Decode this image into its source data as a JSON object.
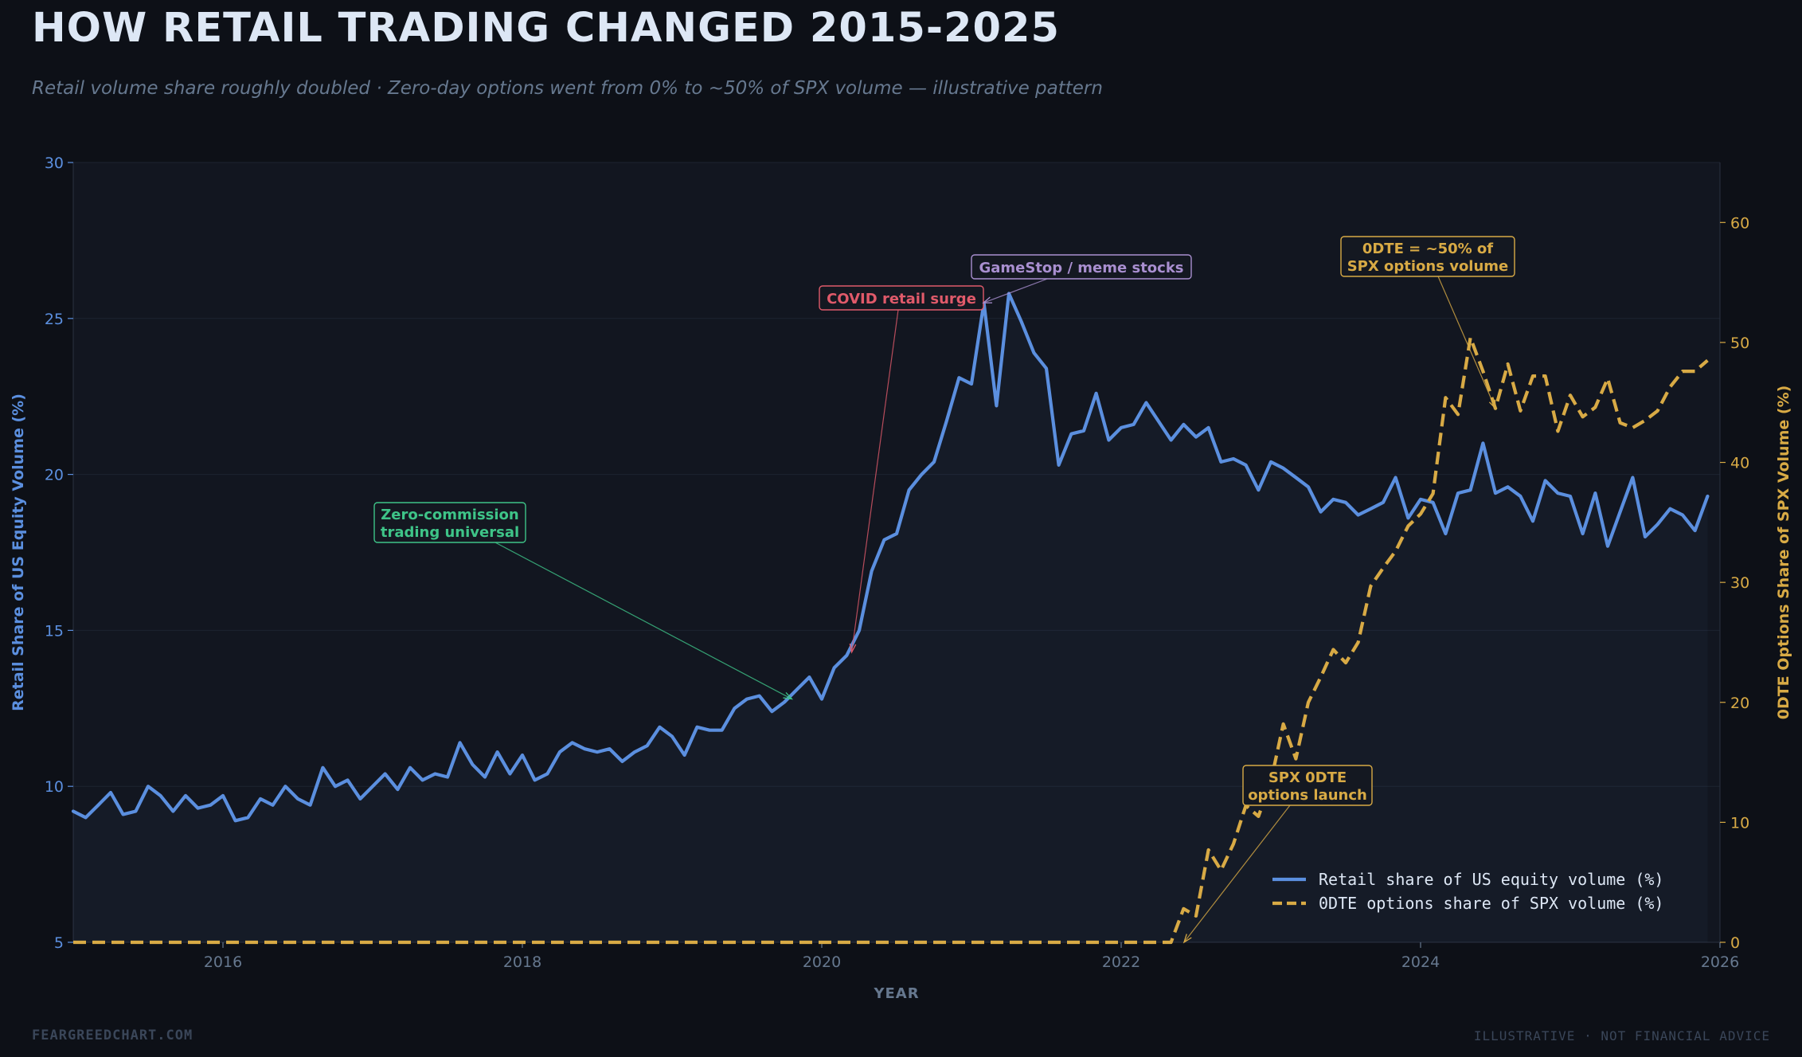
{
  "header": {
    "title": "HOW RETAIL TRADING CHANGED 2015-2025",
    "subtitle": "Retail volume share roughly doubled · Zero-day options went from 0% to ~50% of SPX volume — illustrative pattern"
  },
  "footer": {
    "left": "FEARGREEDCHART.COM",
    "right": "ILLUSTRATIVE · NOT FINANCIAL ADVICE"
  },
  "colors": {
    "background": "#0d1017",
    "plot_background": "#121620",
    "retail": "#5b8fdf",
    "odte": "#d8aa45",
    "green_annotation": "#3ec488",
    "red_annotation": "#e05a6a",
    "purple_annotation": "#a98fd0",
    "muted_text": "#66788f"
  },
  "chart_data": {
    "type": "line",
    "xlabel": "YEAR",
    "ylabel_left": "Retail Share of US Equity Volume (%)",
    "ylabel_right": "0DTE Options Share of SPX Volume (%)",
    "xlim": [
      2015,
      2026
    ],
    "ylim_left": [
      5,
      30
    ],
    "ylim_right": [
      0,
      65
    ],
    "x_ticks": [
      2016,
      2018,
      2020,
      2022,
      2024,
      2026
    ],
    "y_ticks_left": [
      5,
      10,
      15,
      20,
      25,
      30
    ],
    "y_ticks_right": [
      0,
      10,
      20,
      30,
      40,
      50,
      60
    ],
    "grid": true,
    "legend_position": "bottom-right",
    "series": [
      {
        "name": "Retail share of US equity volume (%)",
        "axis": "left",
        "style": "solid",
        "x": [
          2015.0,
          2015.083,
          2015.167,
          2015.25,
          2015.333,
          2015.417,
          2015.5,
          2015.583,
          2015.667,
          2015.75,
          2015.833,
          2015.917,
          2016.0,
          2016.083,
          2016.167,
          2016.25,
          2016.333,
          2016.417,
          2016.5,
          2016.583,
          2016.667,
          2016.75,
          2016.833,
          2016.917,
          2017.0,
          2017.083,
          2017.167,
          2017.25,
          2017.333,
          2017.417,
          2017.5,
          2017.583,
          2017.667,
          2017.75,
          2017.833,
          2017.917,
          2018.0,
          2018.083,
          2018.167,
          2018.25,
          2018.333,
          2018.417,
          2018.5,
          2018.583,
          2018.667,
          2018.75,
          2018.833,
          2018.917,
          2019.0,
          2019.083,
          2019.167,
          2019.25,
          2019.333,
          2019.417,
          2019.5,
          2019.583,
          2019.667,
          2019.75,
          2019.833,
          2019.917,
          2020.0,
          2020.083,
          2020.167,
          2020.25,
          2020.333,
          2020.417,
          2020.5,
          2020.583,
          2020.667,
          2020.75,
          2020.833,
          2020.917,
          2021.0,
          2021.083,
          2021.167,
          2021.25,
          2021.333,
          2021.417,
          2021.5,
          2021.583,
          2021.667,
          2021.75,
          2021.833,
          2021.917,
          2022.0,
          2022.083,
          2022.167,
          2022.25,
          2022.333,
          2022.417,
          2022.5,
          2022.583,
          2022.667,
          2022.75,
          2022.833,
          2022.917,
          2023.0,
          2023.083,
          2023.167,
          2023.25,
          2023.333,
          2023.417,
          2023.5,
          2023.583,
          2023.667,
          2023.75,
          2023.833,
          2023.917,
          2024.0,
          2024.083,
          2024.167,
          2024.25,
          2024.333,
          2024.417,
          2024.5,
          2024.583,
          2024.667,
          2024.75,
          2024.833,
          2024.917,
          2025.0,
          2025.083,
          2025.167,
          2025.25,
          2025.333,
          2025.417,
          2025.5,
          2025.583,
          2025.667,
          2025.75,
          2025.833,
          2025.917
        ],
        "values": [
          9.2,
          9.0,
          9.4,
          9.8,
          9.1,
          9.2,
          10.0,
          9.7,
          9.2,
          9.7,
          9.3,
          9.4,
          9.7,
          8.9,
          9.0,
          9.6,
          9.4,
          10.0,
          9.6,
          9.4,
          10.6,
          10.0,
          10.2,
          9.6,
          10.0,
          10.4,
          9.9,
          10.6,
          10.2,
          10.4,
          10.3,
          11.4,
          10.7,
          10.3,
          11.1,
          10.4,
          11.0,
          10.2,
          10.4,
          11.1,
          11.4,
          11.2,
          11.1,
          11.2,
          10.8,
          11.1,
          11.3,
          11.9,
          11.6,
          11.0,
          11.9,
          11.8,
          11.8,
          12.5,
          12.8,
          12.9,
          12.4,
          12.7,
          13.1,
          13.5,
          12.8,
          13.8,
          14.2,
          15.0,
          16.9,
          17.9,
          18.1,
          19.5,
          20.0,
          20.4,
          21.7,
          23.1,
          22.9,
          25.5,
          22.2,
          25.8,
          24.9,
          23.9,
          23.4,
          20.3,
          21.3,
          21.4,
          22.6,
          21.1,
          21.5,
          21.6,
          22.3,
          21.7,
          21.1,
          21.6,
          21.2,
          21.5,
          20.4,
          20.5,
          20.3,
          19.5,
          20.4,
          20.2,
          19.9,
          19.6,
          18.8,
          19.2,
          19.1,
          18.7,
          18.9,
          19.1,
          19.9,
          18.6,
          19.2,
          19.1,
          18.1,
          19.4,
          19.5,
          21.0,
          19.4,
          19.6,
          19.3,
          18.5,
          19.8,
          19.4,
          19.3,
          18.1,
          19.4,
          17.7,
          18.8,
          19.9,
          18.0,
          18.4,
          18.9,
          18.7,
          18.2,
          19.3
        ]
      },
      {
        "name": "0DTE options share of SPX volume (%)",
        "axis": "right",
        "style": "dashed",
        "x": [
          2015.0,
          2016.0,
          2017.0,
          2018.0,
          2019.0,
          2020.0,
          2021.0,
          2022.0,
          2022.333,
          2022.417,
          2022.5,
          2022.583,
          2022.667,
          2022.75,
          2022.833,
          2022.917,
          2023.0,
          2023.083,
          2023.167,
          2023.25,
          2023.333,
          2023.417,
          2023.5,
          2023.583,
          2023.667,
          2023.75,
          2023.833,
          2023.917,
          2024.0,
          2024.083,
          2024.167,
          2024.25,
          2024.333,
          2024.417,
          2024.5,
          2024.583,
          2024.667,
          2024.75,
          2024.833,
          2024.917,
          2025.0,
          2025.083,
          2025.167,
          2025.25,
          2025.333,
          2025.417,
          2025.5,
          2025.583,
          2025.667,
          2025.75,
          2025.833,
          2025.917
        ],
        "values": [
          0,
          0,
          0,
          0,
          0,
          0,
          0,
          0,
          0,
          2.8,
          2.2,
          7.7,
          6.0,
          8.2,
          11.4,
          10.5,
          13.4,
          18.2,
          15.3,
          20.0,
          22.1,
          24.4,
          23.3,
          25.0,
          29.7,
          31.2,
          32.6,
          34.7,
          35.7,
          37.4,
          45.4,
          44.0,
          50.4,
          47.6,
          44.5,
          48.2,
          44.3,
          47.2,
          47.2,
          42.6,
          45.6,
          43.8,
          44.6,
          47.0,
          43.3,
          42.9,
          43.5,
          44.3,
          46.3,
          47.6,
          47.6,
          48.5
        ]
      }
    ],
    "annotations": [
      {
        "text": "Zero-commission\ntrading universal",
        "x": 2019.8,
        "y": 12.8,
        "axis": "left",
        "color_key": "green_annotation"
      },
      {
        "text": "COVID retail surge",
        "x": 2020.2,
        "y": 14.3,
        "axis": "left",
        "color_key": "red_annotation"
      },
      {
        "text": "GameStop / meme stocks",
        "x": 2021.08,
        "y": 25.5,
        "axis": "left",
        "color_key": "purple_annotation"
      },
      {
        "text": "0DTE = ~50% of\nSPX options volume",
        "x": 2024.5,
        "y": 44.5,
        "axis": "right",
        "color_key": "odte"
      },
      {
        "text": "SPX 0DTE\noptions launch",
        "x": 2022.42,
        "y": 0,
        "axis": "right",
        "color_key": "odte"
      }
    ]
  }
}
